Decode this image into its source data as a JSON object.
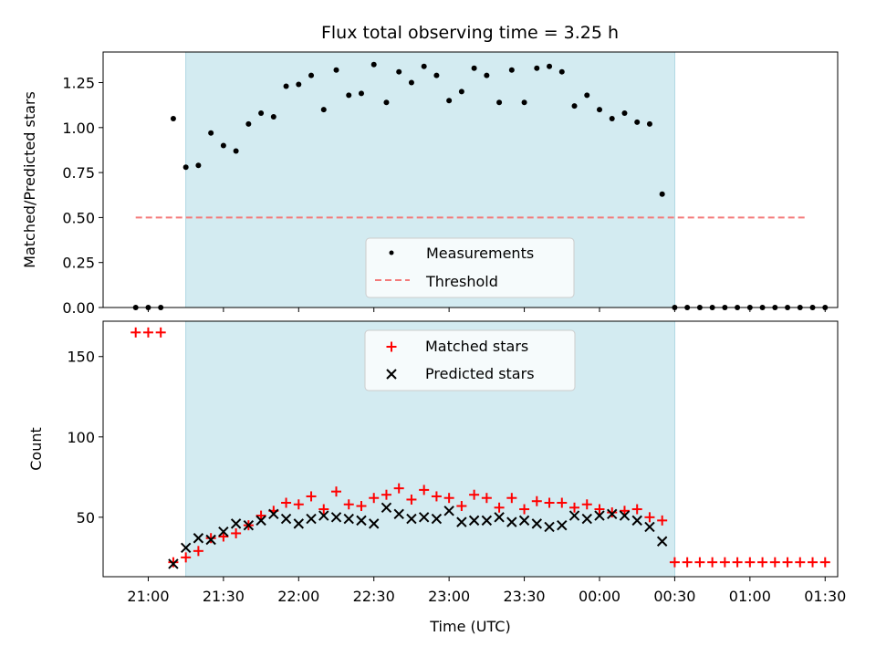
{
  "chart_data": {
    "type": "scatter",
    "title": "Flux total observing time = 3.25 h",
    "xlabel": "Time (UTC)",
    "x_ticks": [
      "21:00",
      "21:30",
      "22:00",
      "22:30",
      "23:00",
      "23:30",
      "00:00",
      "00:30",
      "01:00",
      "01:30"
    ],
    "x_range_minutes": [
      -18,
      275
    ],
    "observing_window_minutes": [
      15,
      210
    ],
    "window_color": "#d3ebf1",
    "x_minutes": [
      -5,
      0,
      5,
      10,
      15,
      20,
      25,
      30,
      35,
      40,
      45,
      50,
      55,
      60,
      65,
      70,
      75,
      80,
      85,
      90,
      95,
      100,
      105,
      110,
      115,
      120,
      125,
      130,
      135,
      140,
      145,
      150,
      155,
      160,
      165,
      170,
      175,
      180,
      185,
      190,
      195,
      200,
      205,
      210,
      215,
      220,
      225,
      230,
      235,
      240,
      245,
      250,
      255,
      260,
      265,
      270
    ],
    "panels": [
      {
        "ylabel": "Matched/Predicted stars",
        "ylim": [
          0,
          1.42
        ],
        "y_ticks": [
          "0.00",
          "0.25",
          "0.50",
          "0.75",
          "1.00",
          "1.25"
        ],
        "legend": {
          "placement": "lower-center",
          "entries": [
            "Measurements",
            "Threshold"
          ]
        },
        "series": [
          {
            "name": "Measurements",
            "marker": "dot",
            "color": "#000000",
            "values": [
              0,
              0,
              0,
              1.05,
              0.78,
              0.79,
              0.97,
              0.9,
              0.87,
              1.02,
              1.08,
              1.06,
              1.23,
              1.24,
              1.29,
              1.1,
              1.32,
              1.18,
              1.19,
              1.35,
              1.14,
              1.31,
              1.25,
              1.34,
              1.29,
              1.15,
              1.2,
              1.33,
              1.29,
              1.14,
              1.32,
              1.14,
              1.33,
              1.34,
              1.31,
              1.12,
              1.18,
              1.1,
              1.05,
              1.08,
              1.03,
              1.02,
              0.63,
              0,
              0,
              0,
              0,
              0,
              0,
              0,
              0,
              0,
              0,
              0,
              0,
              0
            ]
          },
          {
            "name": "Threshold",
            "marker": "dashed-line",
            "color": "#f47a7a",
            "y": 0.5,
            "x_span_minutes": [
              -5,
              262
            ]
          }
        ]
      },
      {
        "ylabel": "Count",
        "ylim": [
          13,
          172
        ],
        "y_ticks": [
          "50",
          "100",
          "150"
        ],
        "legend": {
          "placement": "upper-center",
          "entries": [
            "Matched stars",
            "Predicted stars"
          ]
        },
        "series": [
          {
            "name": "Matched stars",
            "marker": "plus",
            "color": "#ff0000",
            "values": [
              165,
              165,
              165,
              22,
              25,
              29,
              37,
              38,
              40,
              45,
              51,
              54,
              59,
              58,
              63,
              55,
              66,
              58,
              57,
              62,
              64,
              68,
              61,
              67,
              63,
              62,
              57,
              64,
              62,
              56,
              62,
              55,
              60,
              59,
              59,
              56,
              58,
              55,
              53,
              54,
              55,
              50,
              48,
              22,
              22,
              22,
              22,
              22,
              22,
              22,
              22,
              22,
              22,
              22,
              22,
              22
            ]
          },
          {
            "name": "Predicted stars",
            "marker": "x",
            "color": "#000000",
            "values": [
              null,
              null,
              null,
              21,
              31,
              37,
              36,
              41,
              46,
              45,
              48,
              52,
              49,
              46,
              49,
              51,
              50,
              49,
              48,
              46,
              56,
              52,
              49,
              50,
              49,
              54,
              47,
              48,
              48,
              50,
              47,
              48,
              46,
              44,
              45,
              51,
              49,
              51,
              52,
              51,
              48,
              44,
              35,
              null,
              null,
              null,
              null,
              null,
              null,
              null,
              null,
              null,
              null,
              null,
              null,
              null
            ]
          }
        ]
      }
    ]
  }
}
